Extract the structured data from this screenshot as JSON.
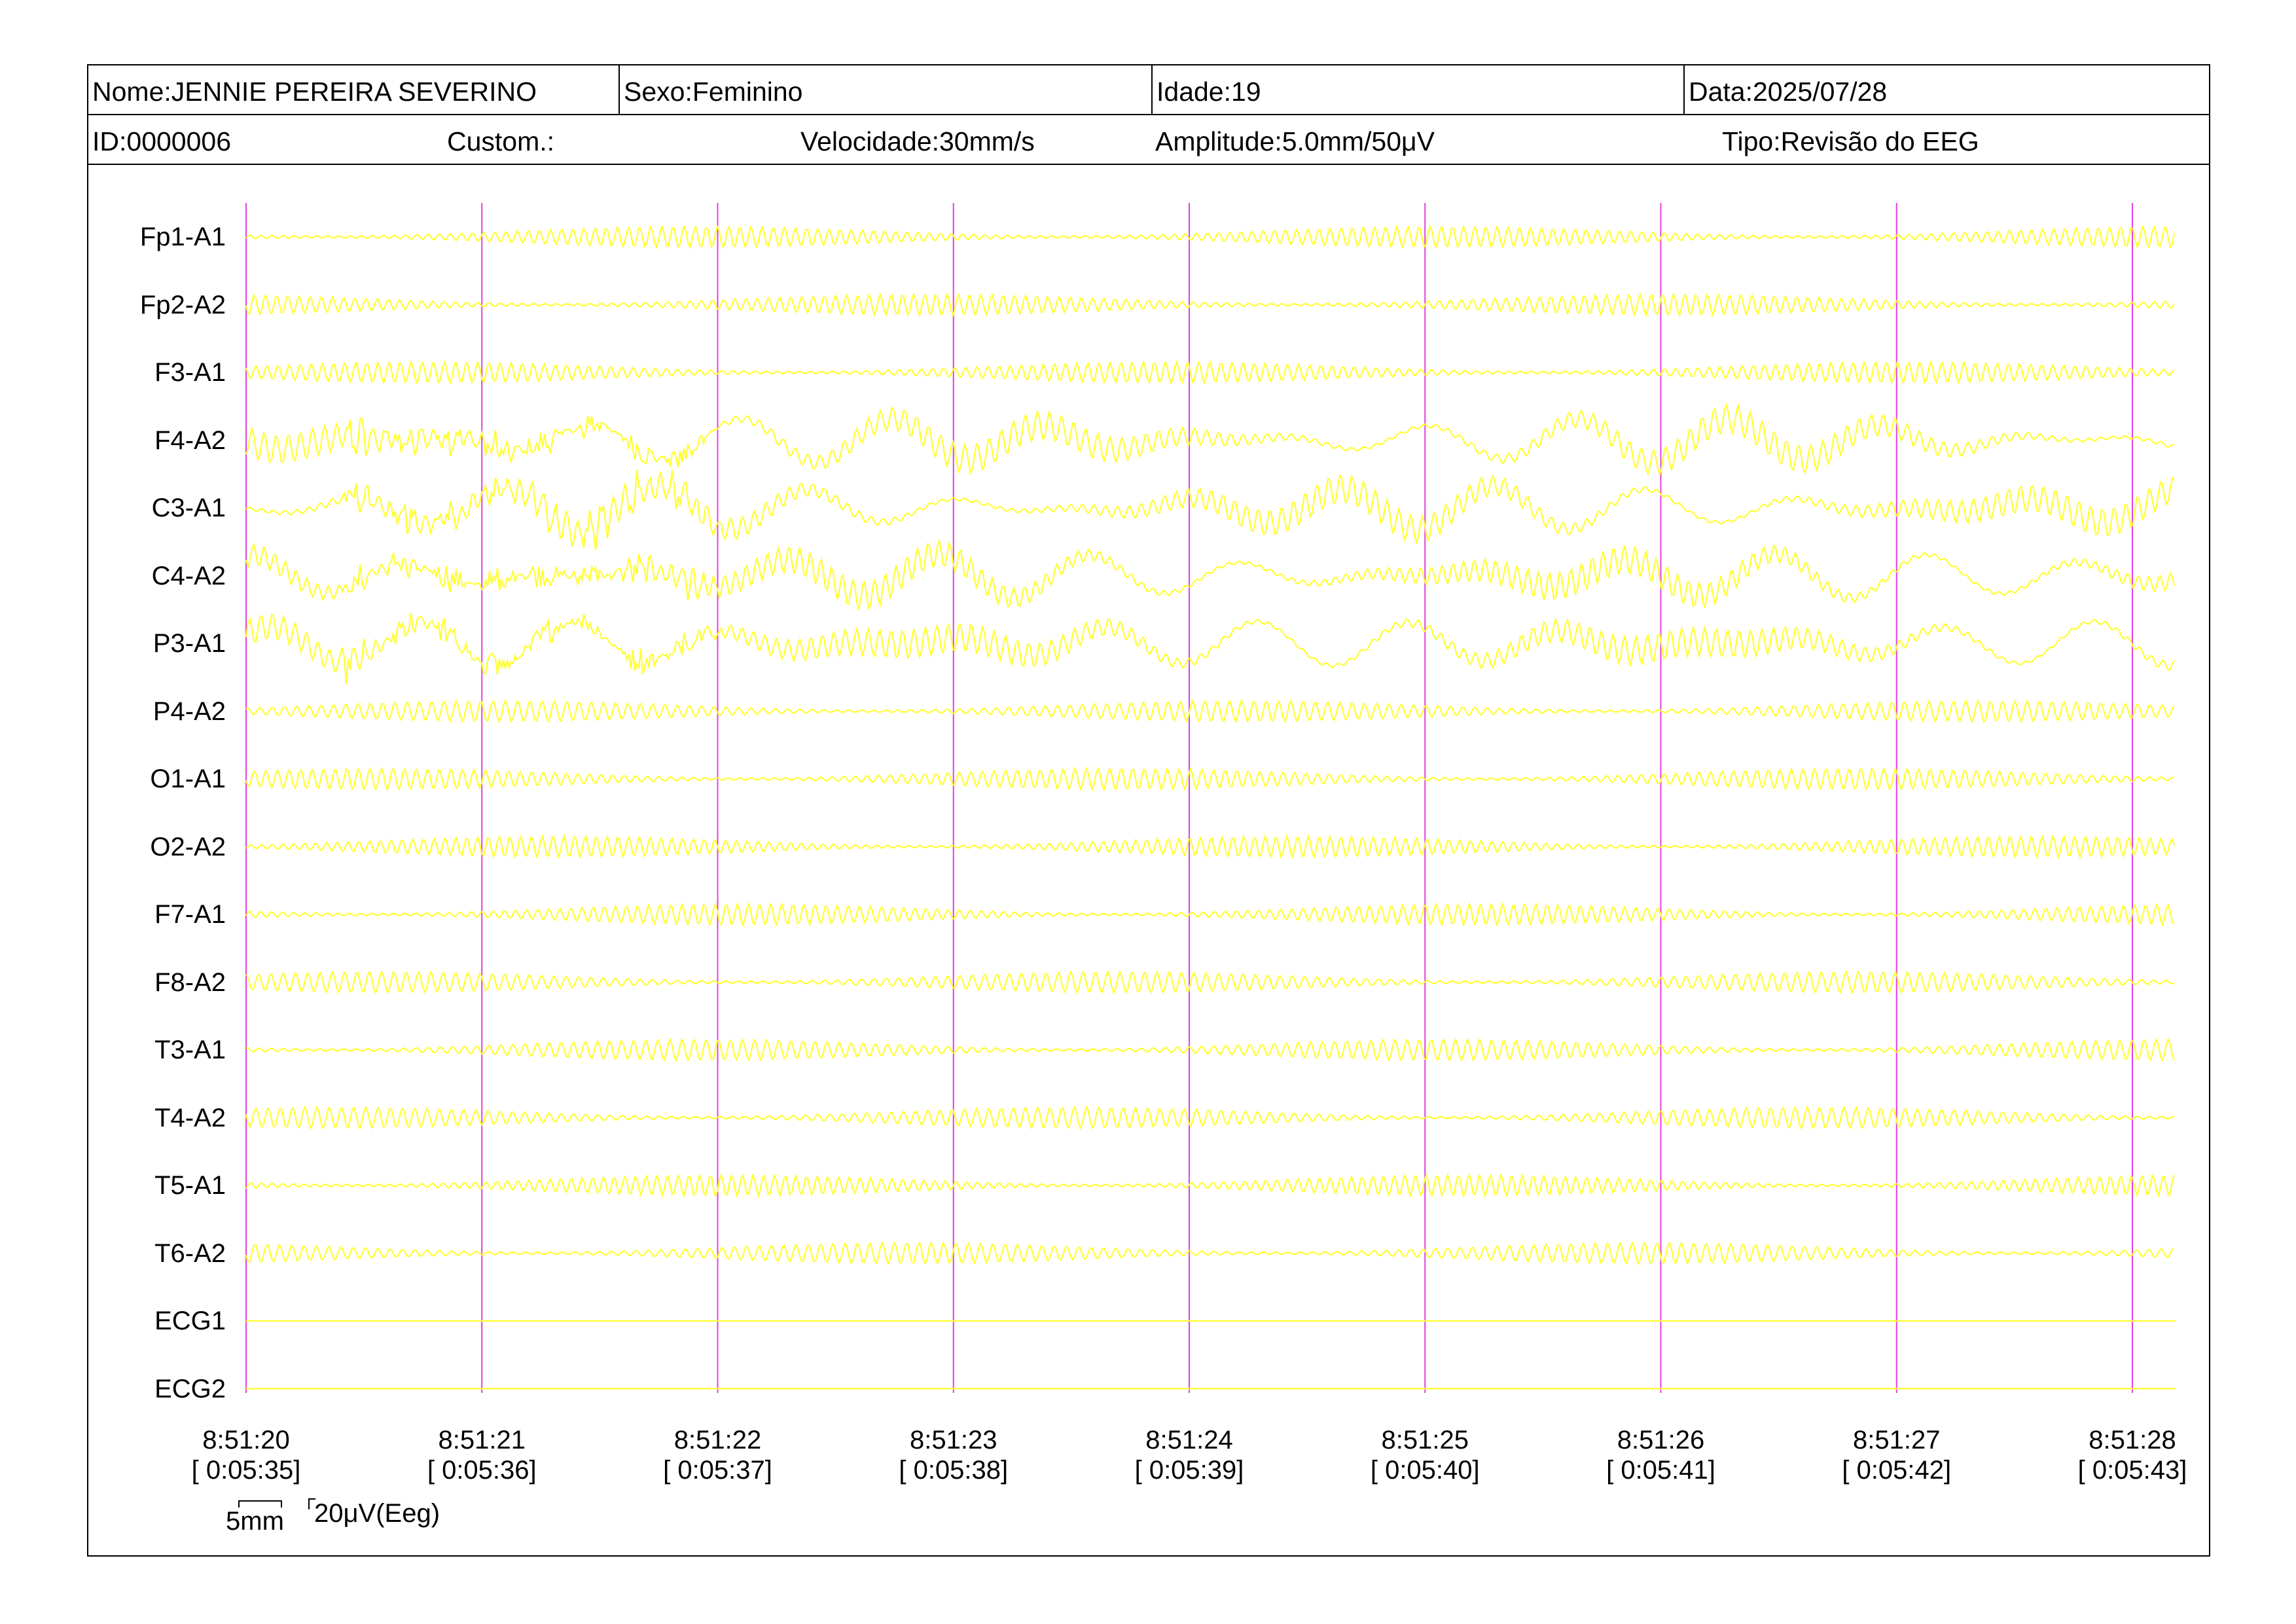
{
  "header": {
    "nome": "Nome:JENNIE PEREIRA SEVERINO",
    "sexo": "Sexo:Feminino",
    "idade": "Idade:19",
    "data": "Data:2025/07/28",
    "id": "ID:0000006",
    "custom": "Custom.:",
    "velocidade": "Velocidade:30mm/s",
    "amplitude": "Amplitude:5.0mm/50μV",
    "tipo": "Tipo:Revisão do EEG"
  },
  "colors": {
    "trace": "#ffff33",
    "marker": "#e040e0",
    "background": "#ffffff",
    "text": "#000000"
  },
  "chart_data": {
    "type": "line",
    "title": "",
    "channels": [
      "Fp1-A1",
      "Fp2-A2",
      "F3-A1",
      "F4-A2",
      "C3-A1",
      "C4-A2",
      "P3-A1",
      "P4-A2",
      "O1-A1",
      "O2-A2",
      "F7-A1",
      "F8-A2",
      "T3-A1",
      "T4-A2",
      "T5-A1",
      "T6-A2",
      "ECG1",
      "ECG2"
    ],
    "time_ticks": [
      {
        "clock": "8:51:20",
        "elapsed": "[ 0:05:35]"
      },
      {
        "clock": "8:51:21",
        "elapsed": "[ 0:05:36]"
      },
      {
        "clock": "8:51:22",
        "elapsed": "[ 0:05:37]"
      },
      {
        "clock": "8:51:23",
        "elapsed": "[ 0:05:38]"
      },
      {
        "clock": "8:51:24",
        "elapsed": "[ 0:05:39]"
      },
      {
        "clock": "8:51:25",
        "elapsed": "[ 0:05:40]"
      },
      {
        "clock": "8:51:26",
        "elapsed": "[ 0:05:41]"
      },
      {
        "clock": "8:51:27",
        "elapsed": "[ 0:05:42]"
      },
      {
        "clock": "8:51:28",
        "elapsed": "[ 0:05:43]"
      }
    ],
    "flat_channels": [
      "ECG1",
      "ECG2"
    ],
    "scale": {
      "time": "5mm",
      "amplitude": "20μV(Eeg)"
    }
  }
}
